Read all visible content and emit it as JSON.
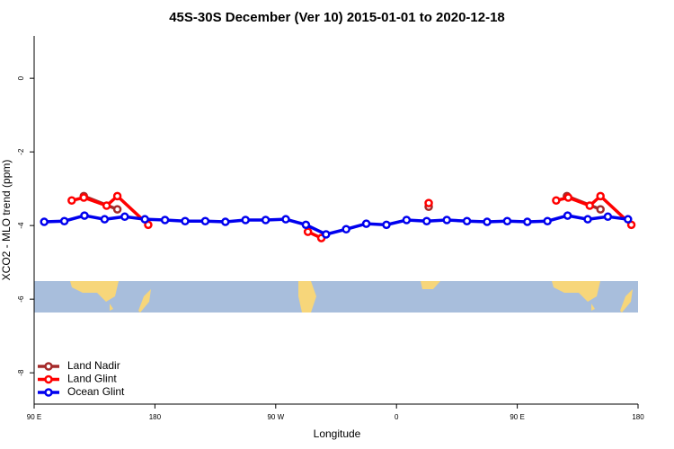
{
  "chart_data": {
    "type": "line",
    "title": "45S-30S December (Ver 10)   2015-01-01 to 2020-12-18",
    "x_label": "Longitude",
    "y_label": "XCO2 - MLO trend (ppm)",
    "xlim": [
      90,
      540
    ],
    "xticks": [
      {
        "value": 90,
        "label": "90 E"
      },
      180,
      {
        "value": 270,
        "label": "90 W"
      },
      {
        "value": 360,
        "label": "0"
      },
      {
        "value": 450,
        "label": "90 E"
      },
      {
        "value": 540,
        "label": "180"
      }
    ],
    "ylim": [
      -8.85,
      1.15
    ],
    "yticks": [
      0,
      -2,
      -4,
      -6,
      -8
    ],
    "legend": "bottom-left",
    "series": [
      {
        "name": "Land Nadir",
        "color": "#a52a2a",
        "x": [
          127,
          152,
          null,
          384,
          null,
          487,
          512
        ],
        "values": [
          -3.2,
          -3.56,
          null,
          -3.49,
          null,
          -3.2,
          -3.56
        ]
      },
      {
        "name": "Land Glint",
        "color": "#ff0000",
        "x": [
          118,
          127,
          144,
          152,
          175,
          null,
          294,
          304,
          null,
          384,
          null,
          479,
          488,
          504,
          512,
          535
        ],
        "values": [
          -3.32,
          -3.24,
          -3.46,
          -3.2,
          -3.98,
          null,
          -4.17,
          -4.34,
          null,
          -3.39,
          null,
          -3.32,
          -3.24,
          -3.46,
          -3.2,
          -3.98
        ]
      },
      {
        "name": "Ocean Glint",
        "color": "#0000ee",
        "x": [
          97.5,
          112.5,
          127.5,
          142.5,
          157.5,
          172.5,
          187.5,
          202.5,
          217.5,
          232.5,
          247.5,
          262.5,
          277.5,
          292.5,
          307.5,
          322.5,
          337.5,
          352.5,
          367.5,
          382.5,
          397.5,
          412.5,
          427.5,
          442.5,
          457.5,
          472.5,
          487.5,
          502.5,
          517.5,
          532.5
        ],
        "values": [
          -3.9,
          -3.88,
          -3.73,
          -3.83,
          -3.76,
          -3.83,
          -3.85,
          -3.88,
          -3.88,
          -3.9,
          -3.85,
          -3.85,
          -3.83,
          -3.98,
          -4.24,
          -4.1,
          -3.95,
          -3.98,
          -3.85,
          -3.88,
          -3.85,
          -3.88,
          -3.9,
          -3.88,
          -3.9,
          -3.88,
          -3.73,
          -3.83,
          -3.76,
          -3.83
        ]
      }
    ]
  }
}
